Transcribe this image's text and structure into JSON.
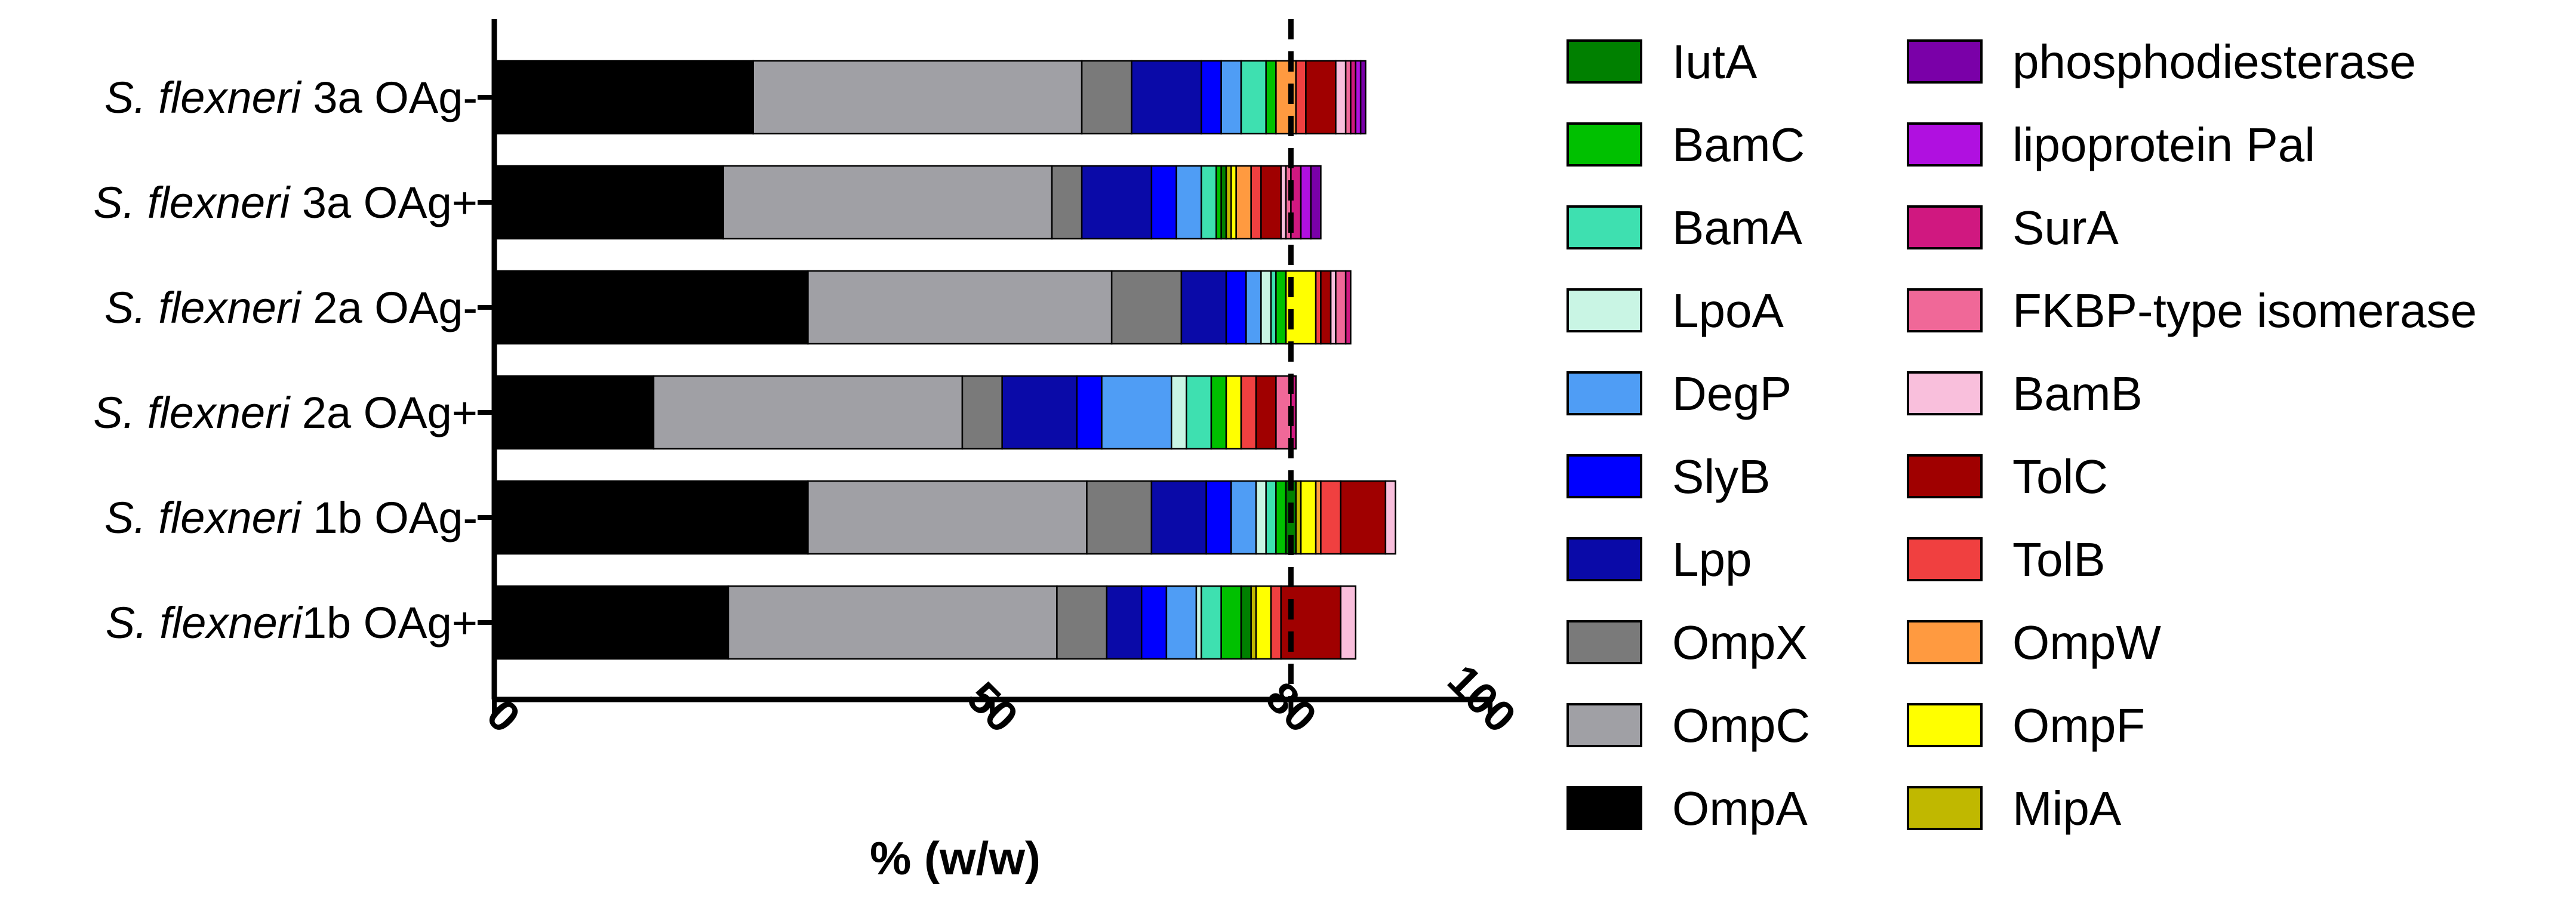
{
  "chart_data": {
    "type": "bar",
    "orientation": "horizontal",
    "stacked": true,
    "xlabel": "% (w/w)",
    "xlim": [
      0,
      100
    ],
    "xticks": [
      0,
      50,
      80,
      100
    ],
    "reference_line": 80,
    "grid": false,
    "legend_position": "right",
    "categories": [
      {
        "prefix": "S. flexneri",
        "suffix": " 3a OAg-"
      },
      {
        "prefix": "S. flexneri",
        "suffix": " 3a OAg+"
      },
      {
        "prefix": "S. flexneri",
        "suffix": " 2a OAg-"
      },
      {
        "prefix": "S. flexneri",
        "suffix": " 2a OAg+"
      },
      {
        "prefix": "S. flexneri",
        "suffix": " 1b OAg-"
      },
      {
        "prefix": "S. flexneri",
        "suffix": "1b OAg+"
      }
    ],
    "series": [
      {
        "name": "OmpA",
        "color": "#000000",
        "values": [
          26,
          23,
          31.5,
          16,
          31.5,
          23.5
        ]
      },
      {
        "name": "OmpC",
        "color": "#a0a0a5",
        "values": [
          33,
          33,
          30.5,
          31,
          28,
          33
        ]
      },
      {
        "name": "OmpX",
        "color": "#7a7a7a",
        "values": [
          5,
          3,
          7,
          4,
          6.5,
          5
        ]
      },
      {
        "name": "Lpp",
        "color": "#0a0aa8",
        "values": [
          7,
          7,
          4.5,
          7.5,
          5.5,
          3.5
        ]
      },
      {
        "name": "SlyB",
        "color": "#0000ff",
        "values": [
          2,
          2.5,
          2,
          2.5,
          2.5,
          2.5
        ]
      },
      {
        "name": "DegP",
        "color": "#4f9df5",
        "values": [
          2,
          2.5,
          1.5,
          7,
          2.5,
          3
        ]
      },
      {
        "name": "LpoA",
        "color": "#c9f5e4",
        "values": [
          0,
          0,
          1,
          1.5,
          1,
          0.5
        ]
      },
      {
        "name": "BamA",
        "color": "#3ee0b0",
        "values": [
          2.5,
          1.5,
          0.5,
          2.5,
          1,
          2
        ]
      },
      {
        "name": "BamC",
        "color": "#00c000",
        "values": [
          1,
          0.5,
          1,
          1.5,
          1,
          2
        ]
      },
      {
        "name": "IutA",
        "color": "#008000",
        "values": [
          0,
          0.5,
          0,
          0,
          1,
          1
        ]
      },
      {
        "name": "MipA",
        "color": "#c0b800",
        "values": [
          0,
          0.5,
          0,
          0,
          0.5,
          0.5
        ]
      },
      {
        "name": "OmpF",
        "color": "#ffff00",
        "values": [
          0,
          0.5,
          3,
          1.5,
          1.5,
          1.5
        ]
      },
      {
        "name": "OmpW",
        "color": "#ff9a40",
        "values": [
          2,
          1.5,
          0,
          0,
          0.5,
          0
        ]
      },
      {
        "name": "TolB",
        "color": "#f04040",
        "values": [
          1,
          1,
          0.5,
          1.5,
          2,
          1
        ]
      },
      {
        "name": "TolC",
        "color": "#a00000",
        "values": [
          3,
          2,
          1,
          2,
          4.5,
          6
        ]
      },
      {
        "name": "BamB",
        "color": "#f9bfdc",
        "values": [
          1,
          0.5,
          0.5,
          0,
          1,
          1.5
        ]
      },
      {
        "name": "FKBP-type isomerase",
        "color": "#f06898",
        "values": [
          0.5,
          0.5,
          1,
          1.5,
          0,
          0
        ]
      },
      {
        "name": "SurA",
        "color": "#d01880",
        "values": [
          0.5,
          1,
          0.5,
          0.5,
          0,
          0
        ]
      },
      {
        "name": "lipoprotein Pal",
        "color": "#b010e0",
        "values": [
          0.5,
          1,
          0,
          0,
          0,
          0
        ]
      },
      {
        "name": "phosphodiesterase",
        "color": "#7a00a8",
        "values": [
          0.5,
          1,
          0,
          0,
          0,
          0
        ]
      }
    ],
    "legend_columns": [
      [
        "IutA",
        "BamC",
        "BamA",
        "LpoA",
        "DegP",
        "SlyB",
        "Lpp",
        "OmpX",
        "OmpC",
        "OmpA"
      ],
      [
        "phosphodiesterase",
        "lipoprotein Pal",
        "SurA",
        "FKBP-type isomerase",
        "BamB",
        "TolC",
        "TolB",
        "OmpW",
        "OmpF",
        "MipA"
      ]
    ]
  }
}
